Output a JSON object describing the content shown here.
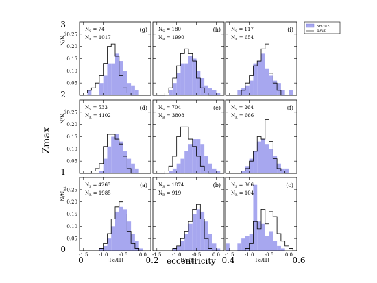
{
  "figure": {
    "y_outer_label": "Zmax",
    "x_outer_label": "eccentricity",
    "y_outer_ticks": [
      "0",
      "1",
      "2",
      "3"
    ],
    "x_outer_ticks": [
      "0",
      "0.2",
      "0.4",
      "0.6"
    ],
    "panel_xlabel": "[Fe/H]",
    "panel_ylabel": "N/N",
    "panel_ylabel_sub": "tot",
    "legend": [
      {
        "label": "SEGUE",
        "color": "#a7a7ef",
        "style": "filled"
      },
      {
        "label": "RAVE",
        "color": "#000000",
        "style": "step"
      }
    ]
  },
  "chart_data": {
    "type": "histogram",
    "grid": false,
    "xlim": [
      -1.6,
      0.2
    ],
    "ylim": [
      0,
      0.3
    ],
    "x_ticks": [
      "-1.5",
      "-1.0",
      "-0.5",
      "0.0"
    ],
    "y_ticks": [
      "0.05",
      "0.10",
      "0.15",
      "0.20",
      "0.25"
    ],
    "bin_start": -1.6,
    "bin_width": 0.1,
    "colors": {
      "segue": "#a7a7ef",
      "rave": "#000000"
    },
    "panels": [
      {
        "id": "g",
        "label": "(g)",
        "ns_label": "N",
        "ns_sub": "S",
        "ns_value": "74",
        "nr_label": "N",
        "nr_sub": "R",
        "nr_value": "1017",
        "segue": [
          0,
          0,
          0.02,
          0,
          0,
          0.05,
          0.08,
          0.13,
          0.13,
          0.17,
          0.14,
          0.1,
          0.05,
          0.04,
          0.02,
          0,
          0,
          0
        ],
        "rave": [
          0,
          0.01,
          0.02,
          0.03,
          0.05,
          0.08,
          0.13,
          0.2,
          0.21,
          0.16,
          0.08,
          0.03,
          0.01,
          0,
          0,
          0,
          0,
          0
        ]
      },
      {
        "id": "h",
        "label": "(h)",
        "ns_label": "N",
        "ns_sub": "S",
        "ns_value": "180",
        "nr_label": "N",
        "nr_sub": "R",
        "nr_value": "1990",
        "segue": [
          0,
          0,
          0,
          0,
          0.02,
          0.05,
          0.09,
          0.13,
          0.13,
          0.16,
          0.15,
          0.1,
          0.07,
          0.04,
          0.03,
          0.02,
          0.01,
          0
        ],
        "rave": [
          0,
          0,
          0,
          0.01,
          0.03,
          0.07,
          0.12,
          0.17,
          0.19,
          0.17,
          0.14,
          0.07,
          0.03,
          0.01,
          0,
          0,
          0,
          0
        ]
      },
      {
        "id": "i",
        "label": "(i)",
        "ns_label": "N",
        "ns_sub": "S",
        "ns_value": "117",
        "nr_label": "N",
        "nr_sub": "R",
        "nr_value": "654",
        "segue": [
          0,
          0,
          0,
          0.02,
          0.03,
          0.04,
          0.06,
          0.13,
          0.14,
          0.17,
          0.11,
          0.08,
          0.06,
          0.05,
          0.02,
          0,
          0.02,
          0
        ],
        "rave": [
          0,
          0,
          0,
          0,
          0.02,
          0.05,
          0.08,
          0.12,
          0.14,
          0.19,
          0.21,
          0.09,
          0.05,
          0.02,
          0,
          0,
          0,
          0
        ]
      },
      {
        "id": "d",
        "label": "(d)",
        "ns_label": "N",
        "ns_sub": "S",
        "ns_value": "533",
        "nr_label": "N",
        "nr_sub": "R",
        "nr_value": "4102",
        "segue": [
          0,
          0,
          0,
          0,
          0,
          0.01,
          0.06,
          0.11,
          0.15,
          0.16,
          0.13,
          0.09,
          0.06,
          0.04,
          0.02,
          0,
          0,
          0
        ],
        "rave": [
          0,
          0,
          0,
          0.01,
          0.02,
          0.04,
          0.11,
          0.16,
          0.16,
          0.14,
          0.12,
          0.07,
          0.02,
          0,
          0,
          0,
          0,
          0
        ]
      },
      {
        "id": "e",
        "label": "(e)",
        "ns_label": "N",
        "ns_sub": "S",
        "ns_value": "704",
        "nr_label": "N",
        "nr_sub": "R",
        "nr_value": "3808",
        "segue": [
          0,
          0,
          0,
          0,
          0.01,
          0.02,
          0.04,
          0.06,
          0.09,
          0.12,
          0.14,
          0.14,
          0.12,
          0.07,
          0.04,
          0.02,
          0.01,
          0
        ],
        "rave": [
          0,
          0,
          0,
          0.01,
          0.03,
          0.07,
          0.15,
          0.19,
          0.19,
          0.14,
          0.11,
          0.07,
          0.03,
          0.01,
          0,
          0,
          0,
          0
        ]
      },
      {
        "id": "f",
        "label": "(f)",
        "ns_label": "N",
        "ns_sub": "S",
        "ns_value": "264",
        "nr_label": "N",
        "nr_sub": "R",
        "nr_value": "666",
        "segue": [
          0,
          0,
          0,
          0,
          0.01,
          0.03,
          0.06,
          0.09,
          0.13,
          0.14,
          0.12,
          0.1,
          0.07,
          0.04,
          0.02,
          0.02,
          0,
          0
        ],
        "rave": [
          0,
          0,
          0,
          0,
          0.01,
          0.02,
          0.05,
          0.09,
          0.15,
          0.14,
          0.22,
          0.13,
          0.06,
          0.02,
          0.01,
          0,
          0,
          0
        ]
      },
      {
        "id": "a",
        "label": "(a)",
        "ns_label": "N",
        "ns_sub": "S",
        "ns_value": "4265",
        "nr_label": "N",
        "nr_sub": "R",
        "nr_value": "1985",
        "segue": [
          0,
          0,
          0,
          0,
          0,
          0.01,
          0.02,
          0.05,
          0.1,
          0.16,
          0.18,
          0.17,
          0.12,
          0.07,
          0.04,
          0.01,
          0,
          0
        ],
        "rave": [
          0,
          0,
          0,
          0,
          0,
          0.01,
          0.03,
          0.07,
          0.13,
          0.18,
          0.2,
          0.15,
          0.08,
          0.03,
          0.01,
          0,
          0,
          0
        ]
      },
      {
        "id": "b",
        "label": "(b)",
        "ns_label": "N",
        "ns_sub": "S",
        "ns_value": "1874",
        "nr_label": "N",
        "nr_sub": "R",
        "nr_value": "919",
        "segue": [
          0,
          0,
          0,
          0,
          0,
          0.01,
          0.02,
          0.04,
          0.07,
          0.11,
          0.15,
          0.17,
          0.16,
          0.12,
          0.07,
          0.03,
          0.01,
          0
        ],
        "rave": [
          0,
          0,
          0,
          0,
          0,
          0.01,
          0.02,
          0.05,
          0.08,
          0.12,
          0.17,
          0.19,
          0.13,
          0.05,
          0.01,
          0,
          0,
          0
        ]
      },
      {
        "id": "c",
        "label": "(c)",
        "ns_label": "N",
        "ns_sub": "S",
        "ns_value": "366",
        "nr_label": "N",
        "nr_sub": "R",
        "nr_value": "104",
        "segue": [
          0.03,
          0,
          0,
          0.03,
          0.05,
          0.06,
          0.07,
          0.27,
          0.12,
          0.11,
          0.06,
          0.08,
          0.04,
          0.02,
          0.01,
          0,
          0,
          0
        ],
        "rave": [
          0,
          0,
          0,
          0,
          0,
          0.01,
          0.03,
          0.12,
          0.09,
          0.17,
          0.11,
          0.16,
          0.14,
          0.07,
          0.04,
          0.02,
          0.01,
          0
        ]
      }
    ]
  }
}
